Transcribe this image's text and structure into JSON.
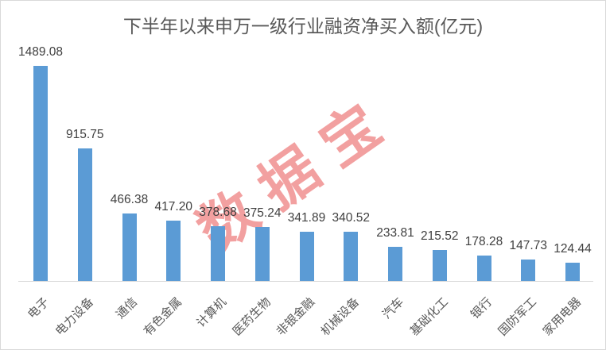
{
  "chart_data": {
    "type": "bar",
    "title": "下半年以来申万一级行业融资净买入额(亿元)",
    "categories": [
      "电子",
      "电力设备",
      "通信",
      "有色金属",
      "计算机",
      "医药生物",
      "非银金融",
      "机械设备",
      "汽车",
      "基础化工",
      "银行",
      "国防军工",
      "家用电器"
    ],
    "values": [
      1489.08,
      915.75,
      466.38,
      417.2,
      378.68,
      375.24,
      341.89,
      340.52,
      233.81,
      215.52,
      178.28,
      147.73,
      124.44
    ],
    "value_labels": [
      "1489.08",
      "915.75",
      "466.38",
      "417.20",
      "378.68",
      "375.24",
      "341.89",
      "340.52",
      "233.81",
      "215.52",
      "178.28",
      "147.73",
      "124.44"
    ],
    "xlabel": "",
    "ylabel": "",
    "ylim": [
      0,
      1600
    ],
    "grid": false,
    "legend": false,
    "bar_color": "#5b9bd5",
    "value_label_color": "#404040",
    "category_label_color": "#595959",
    "title_color": "#595959",
    "axis_line_color": "#d9d9d9"
  },
  "watermark": {
    "text": "数据宝",
    "color": "#f2a0a0"
  }
}
